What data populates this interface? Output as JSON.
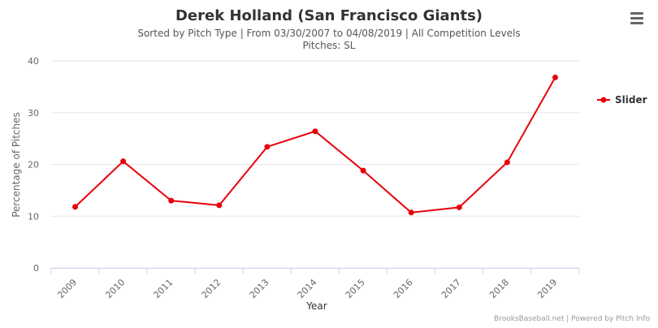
{
  "chart": {
    "title": "Derek Holland (San Francisco Giants)",
    "subtitle": "Sorted by Pitch Type | From 03/30/2007 to 04/08/2019 | All Competition Levels",
    "subtitle2": "Pitches: SL",
    "credits": "BrooksBaseball.net | Powered by Pitch Info"
  },
  "menu": {
    "icon": "hamburger-menu-icon"
  },
  "colors": {
    "series": "#e8000b",
    "grid": "#e6e6e6",
    "axis_text": "#666666",
    "title": "#333333"
  },
  "chart_data": {
    "type": "line",
    "title": "Derek Holland (San Francisco Giants)",
    "xlabel": "Year",
    "ylabel": "Percentage of Pitches",
    "categories": [
      "2009",
      "2010",
      "2011",
      "2012",
      "2013",
      "2014",
      "2015",
      "2016",
      "2017",
      "2018",
      "2019"
    ],
    "yticks": [
      "0",
      "10",
      "20",
      "30",
      "40"
    ],
    "ylim": [
      0,
      40
    ],
    "grid": true,
    "legend_position": "right",
    "series": [
      {
        "name": "Slider",
        "color": "#e8000b",
        "values": [
          11.8,
          20.6,
          13.0,
          12.1,
          23.4,
          26.4,
          18.8,
          10.7,
          11.7,
          20.4,
          36.8
        ]
      }
    ]
  }
}
